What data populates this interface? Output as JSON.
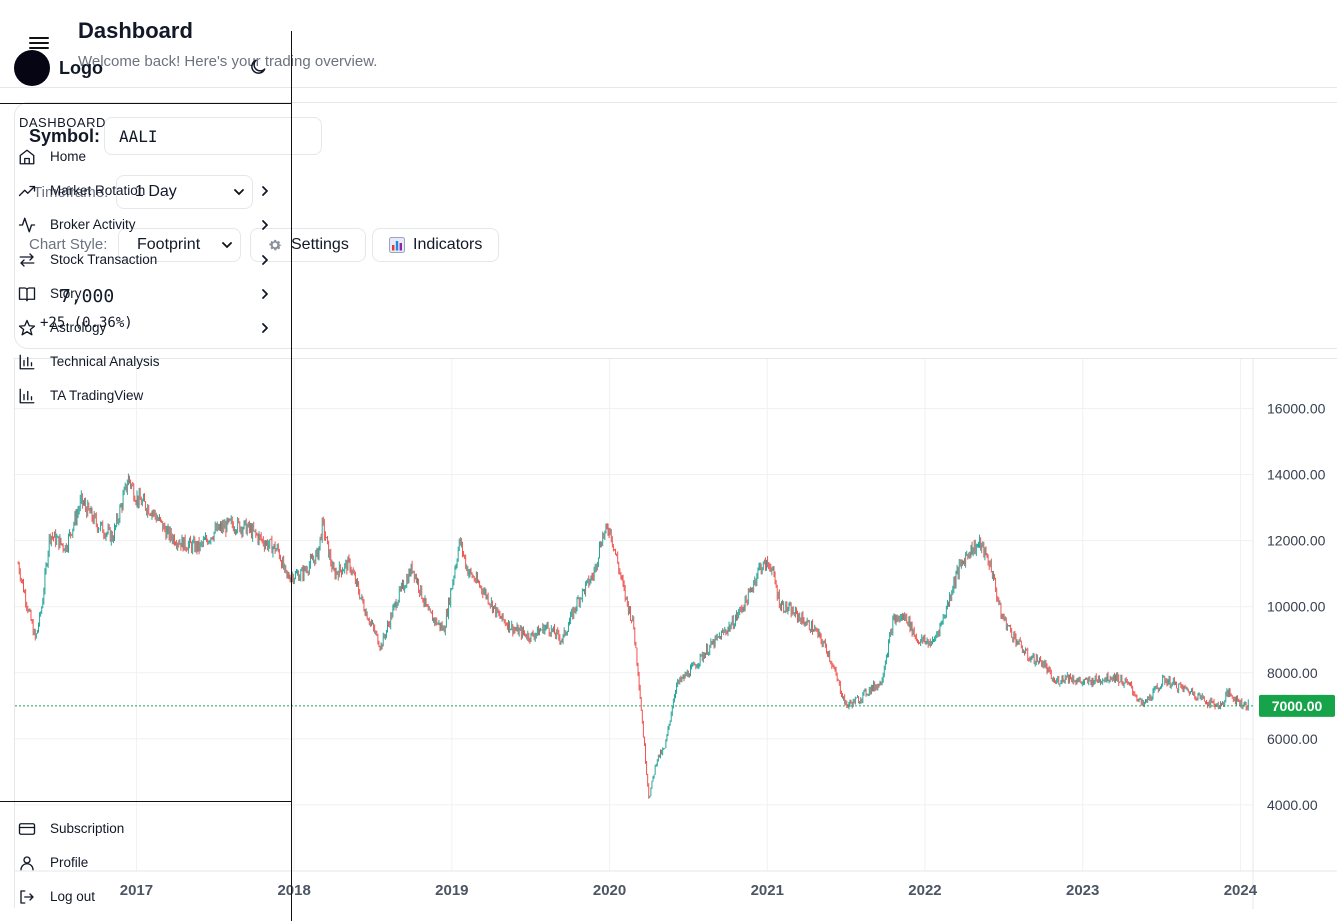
{
  "header": {
    "title": "Dashboard",
    "subtitle": "Welcome back! Here's your trading overview."
  },
  "controls": {
    "symbol_label": "Symbol:",
    "symbol_value": "AALI",
    "timeframe_label": "Timeframe:",
    "timeframe_value": "1 Day",
    "chart_style_label": "Chart Style:",
    "chart_style_value": "Footprint",
    "settings_label": "Settings",
    "indicators_label": "Indicators"
  },
  "price": {
    "value": "7,000",
    "change": "+25 (0.36%)"
  },
  "sidebar": {
    "logo_text": "Logo",
    "section_label": "DASHBOARD",
    "items": [
      {
        "label": "Home",
        "icon": "home-icon",
        "has_submenu": false
      },
      {
        "label": "Market Rotation",
        "icon": "trending-up-icon",
        "has_submenu": true
      },
      {
        "label": "Broker Activity",
        "icon": "activity-icon",
        "has_submenu": true
      },
      {
        "label": "Stock Transaction",
        "icon": "swap-icon",
        "has_submenu": true
      },
      {
        "label": "Story",
        "icon": "book-icon",
        "has_submenu": true
      },
      {
        "label": "Astrology",
        "icon": "star-icon",
        "has_submenu": true
      },
      {
        "label": "Technical Analysis",
        "icon": "bar-chart-icon",
        "has_submenu": false
      },
      {
        "label": "TA TradingView",
        "icon": "bar-chart-icon",
        "has_submenu": false
      }
    ],
    "footer_items": [
      {
        "label": "Subscription",
        "icon": "card-icon"
      },
      {
        "label": "Profile",
        "icon": "user-icon"
      },
      {
        "label": "Log out",
        "icon": "logout-icon"
      }
    ]
  },
  "colors": {
    "up": "#26a69a",
    "down": "#ef5350",
    "price_line": "#22a05a",
    "price_badge": "#16a34a"
  },
  "chart_data": {
    "type": "candlestick",
    "symbol": "AALI",
    "timeframe": "1 Day",
    "current_price": 7000,
    "current_price_label": "7000.00",
    "y_ticks": [
      "16000.00",
      "14000.00",
      "12000.00",
      "10000.00",
      "8000.00",
      "6000.00",
      "4000.00"
    ],
    "y_tick_values": [
      16000,
      14000,
      12000,
      10000,
      8000,
      6000,
      4000
    ],
    "x_ticks": [
      "2017",
      "2018",
      "2019",
      "2020",
      "2021",
      "2022",
      "2023",
      "2024"
    ],
    "x_tick_values": [
      2017,
      2018,
      2019,
      2020,
      2021,
      2022,
      2023,
      2024
    ],
    "ylim": [
      2000,
      17500
    ],
    "xlim": [
      2016.23,
      2024.08
    ],
    "grid": true,
    "close_series": [
      [
        2016.25,
        11300
      ],
      [
        2016.3,
        10200
      ],
      [
        2016.36,
        9000
      ],
      [
        2016.4,
        10000
      ],
      [
        2016.45,
        12200
      ],
      [
        2016.55,
        11800
      ],
      [
        2016.65,
        13200
      ],
      [
        2016.75,
        12500
      ],
      [
        2016.85,
        12100
      ],
      [
        2016.95,
        13900
      ],
      [
        2017.0,
        13300
      ],
      [
        2017.1,
        12900
      ],
      [
        2017.2,
        12200
      ],
      [
        2017.3,
        11900
      ],
      [
        2017.4,
        11800
      ],
      [
        2017.5,
        12300
      ],
      [
        2017.6,
        12500
      ],
      [
        2017.7,
        12400
      ],
      [
        2017.8,
        12000
      ],
      [
        2017.9,
        11700
      ],
      [
        2017.95,
        10900
      ],
      [
        2018.05,
        11000
      ],
      [
        2018.15,
        11600
      ],
      [
        2018.18,
        12500
      ],
      [
        2018.25,
        11000
      ],
      [
        2018.35,
        11300
      ],
      [
        2018.45,
        9900
      ],
      [
        2018.55,
        8800
      ],
      [
        2018.65,
        10200
      ],
      [
        2018.75,
        11200
      ],
      [
        2018.85,
        9800
      ],
      [
        2018.95,
        9300
      ],
      [
        2019.05,
        12000
      ],
      [
        2019.1,
        11100
      ],
      [
        2019.2,
        10500
      ],
      [
        2019.3,
        9700
      ],
      [
        2019.4,
        9300
      ],
      [
        2019.5,
        9100
      ],
      [
        2019.6,
        9400
      ],
      [
        2019.7,
        9000
      ],
      [
        2019.8,
        10200
      ],
      [
        2019.9,
        11000
      ],
      [
        2019.95,
        12100
      ],
      [
        2020.0,
        12400
      ],
      [
        2020.1,
        10300
      ],
      [
        2020.15,
        9500
      ],
      [
        2020.18,
        8100
      ],
      [
        2020.22,
        5800
      ],
      [
        2020.25,
        4200
      ],
      [
        2020.3,
        5400
      ],
      [
        2020.35,
        5700
      ],
      [
        2020.42,
        7600
      ],
      [
        2020.52,
        8100
      ],
      [
        2020.62,
        8700
      ],
      [
        2020.7,
        9100
      ],
      [
        2020.78,
        9500
      ],
      [
        2020.88,
        10300
      ],
      [
        2020.95,
        11200
      ],
      [
        2021.02,
        11300
      ],
      [
        2021.08,
        10100
      ],
      [
        2021.2,
        9700
      ],
      [
        2021.3,
        9300
      ],
      [
        2021.38,
        8700
      ],
      [
        2021.45,
        7700
      ],
      [
        2021.5,
        7000
      ],
      [
        2021.58,
        7200
      ],
      [
        2021.65,
        7500
      ],
      [
        2021.72,
        7700
      ],
      [
        2021.8,
        9600
      ],
      [
        2021.88,
        9700
      ],
      [
        2021.95,
        9000
      ],
      [
        2022.05,
        8900
      ],
      [
        2022.12,
        9700
      ],
      [
        2022.2,
        11000
      ],
      [
        2022.28,
        11700
      ],
      [
        2022.35,
        11900
      ],
      [
        2022.42,
        11200
      ],
      [
        2022.48,
        9800
      ],
      [
        2022.55,
        9200
      ],
      [
        2022.65,
        8500
      ],
      [
        2022.75,
        8300
      ],
      [
        2022.82,
        7700
      ],
      [
        2022.9,
        7900
      ],
      [
        2023.0,
        7700
      ],
      [
        2023.1,
        7800
      ],
      [
        2023.2,
        7900
      ],
      [
        2023.3,
        7600
      ],
      [
        2023.38,
        7000
      ],
      [
        2023.45,
        7400
      ],
      [
        2023.52,
        7800
      ],
      [
        2023.6,
        7600
      ],
      [
        2023.7,
        7400
      ],
      [
        2023.8,
        7100
      ],
      [
        2023.88,
        7000
      ],
      [
        2023.92,
        7400
      ],
      [
        2024.0,
        7100
      ],
      [
        2024.05,
        7000
      ]
    ]
  }
}
